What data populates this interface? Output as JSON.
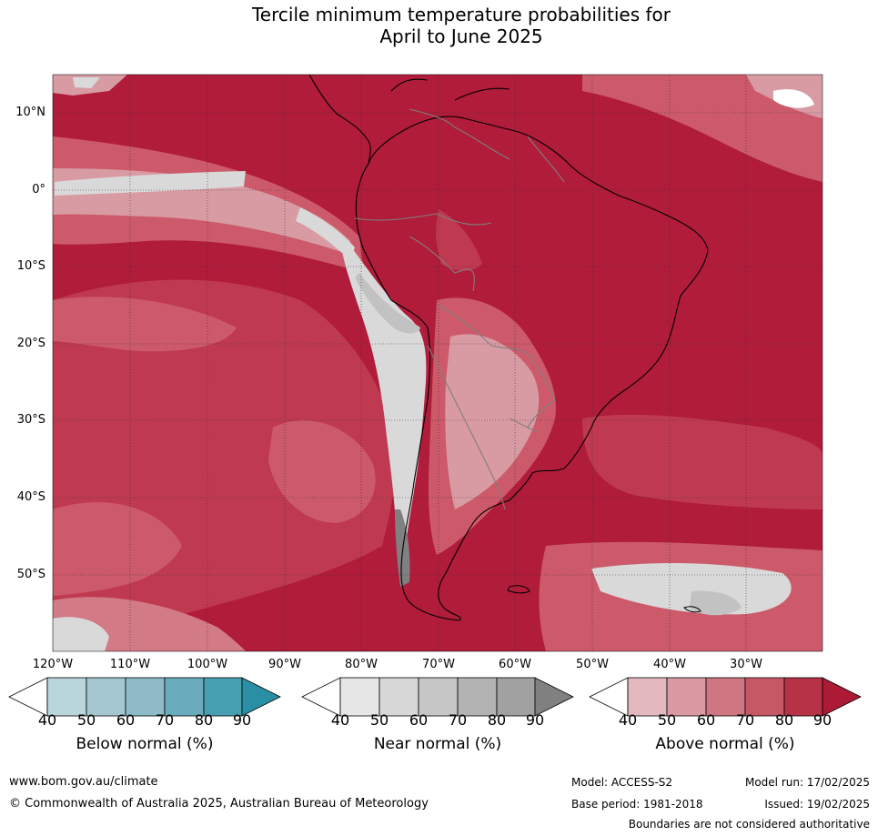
{
  "title": {
    "line1": "Tercile minimum temperature probabilities for",
    "line2": "April to June 2025"
  },
  "map": {
    "latitude_labels": [
      "10°N",
      "0°",
      "10°S",
      "20°S",
      "30°S",
      "40°S",
      "50°S"
    ],
    "longitude_labels": [
      "120°W",
      "110°W",
      "100°W",
      "90°W",
      "80°W",
      "70°W",
      "60°W",
      "50°W",
      "40°W",
      "30°W"
    ],
    "dominant_category": "Above normal",
    "colors": {
      "above_90": "#b01c3a",
      "above_80": "#bf3a50",
      "above_70": "#cc5a6a",
      "above_60": "#d27a86",
      "above_50": "#d99ba3",
      "near_50": "#d9d9d9",
      "near_70": "#c2c2c2",
      "near_90": "#808080",
      "land_outline": "#000000",
      "border": "#7f7f7f",
      "grid": "#333333"
    }
  },
  "colorbars": [
    {
      "title": "Below normal (%)",
      "ticks": [
        "40",
        "50",
        "60",
        "70",
        "80",
        "90"
      ],
      "colors": [
        "#ffffff",
        "#b9d6dd",
        "#a5c8d0",
        "#8ebbc6",
        "#6aacbb",
        "#46a0b2",
        "#2a8fa4"
      ]
    },
    {
      "title": "Near normal (%)",
      "ticks": [
        "40",
        "50",
        "60",
        "70",
        "80",
        "90"
      ],
      "colors": [
        "#ffffff",
        "#e6e6e6",
        "#d7d7d7",
        "#c6c6c6",
        "#b3b3b3",
        "#a1a1a1",
        "#808080"
      ]
    },
    {
      "title": "Above normal (%)",
      "ticks": [
        "40",
        "50",
        "60",
        "70",
        "80",
        "90"
      ],
      "colors": [
        "#ffffff",
        "#e3b8be",
        "#d99aa3",
        "#cf7683",
        "#c65866",
        "#b83247",
        "#ad1a36"
      ]
    }
  ],
  "footer": {
    "url": "www.bom.gov.au/climate",
    "copyright": "© Commonwealth of Australia 2025, Australian Bureau of Meteorology",
    "model": "Model: ACCESS-S2",
    "base_period": "Base period: 1981-2018",
    "model_run": "Model run: 17/02/2025",
    "issued": "Issued: 19/02/2025",
    "disclaimer": "Boundaries are not considered authoritative"
  }
}
